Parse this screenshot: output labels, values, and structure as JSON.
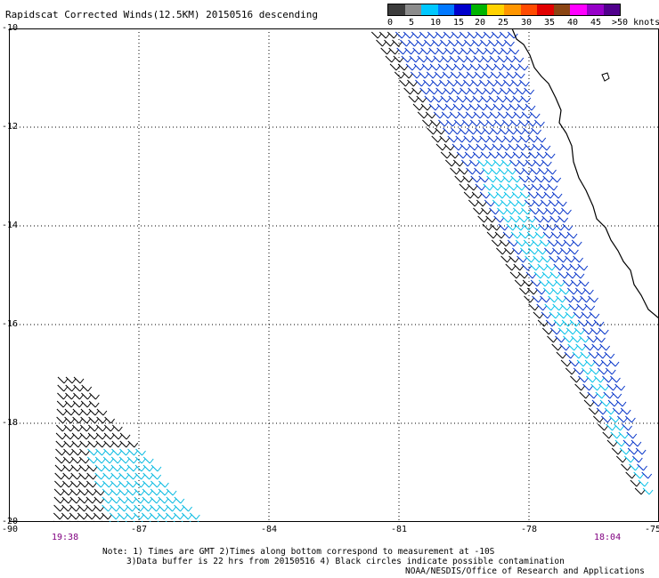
{
  "title": "Rapidscat Corrected Winds(12.5KM) 20150516 descending",
  "legend": {
    "labels": [
      "0",
      "5",
      "10",
      "15",
      "20",
      "25",
      "30",
      "35",
      "40",
      "45",
      ">50 knots"
    ],
    "colors": [
      "#3c3c3c",
      "#8c8c8c",
      "#00c8ff",
      "#0078ff",
      "#0000cc",
      "#00b400",
      "#ffd200",
      "#ff9600",
      "#ff4b00",
      "#e10000",
      "#8b4513",
      "#ff00ff",
      "#9600c8",
      "#50008c"
    ]
  },
  "map": {
    "lat_labels": [
      "-10",
      "-12",
      "-14",
      "-16",
      "-18",
      "-20"
    ],
    "lon_labels": [
      "-90",
      "-87",
      "-84",
      "-81",
      "-78",
      "-75"
    ],
    "lat_range": [
      -20,
      -10
    ],
    "lon_range": [
      -90,
      -75
    ],
    "grid": "dotted"
  },
  "pass_times": {
    "left": "19:38",
    "right": "18:04"
  },
  "notes": {
    "line1": "Note: 1) Times are GMT 2)Times along bottom correspond to measurement at -10S",
    "line2": "3)Data buffer is 22 hrs from 20150516 4) Black circles indicate possible contamination",
    "credit": "NOAA/NESDIS/Office of Research and Applications"
  }
}
